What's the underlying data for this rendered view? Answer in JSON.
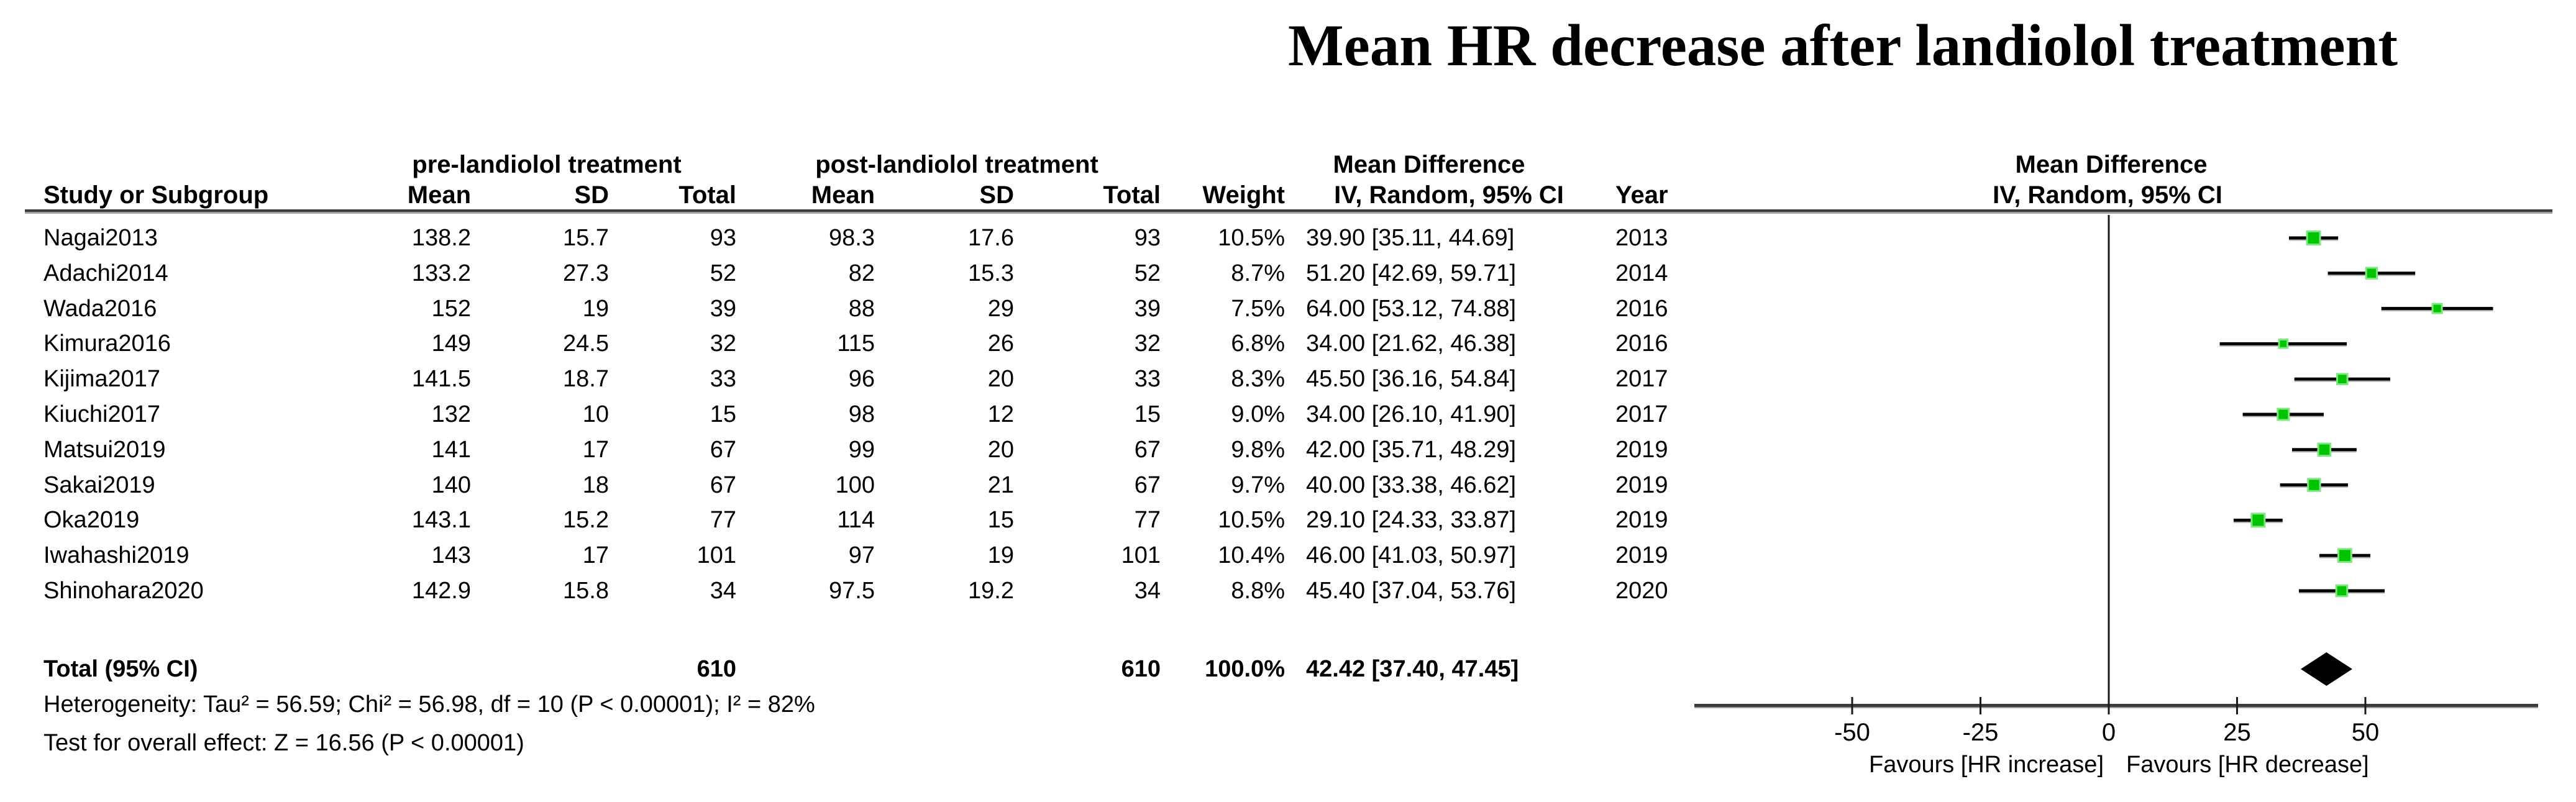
{
  "title": "Mean HR decrease after landiolol treatment",
  "table": {
    "group_headers": {
      "pre": "pre-landiolol treatment",
      "post": "post-landiolol treatment",
      "md_table": "Mean Difference",
      "md_plot": "Mean Difference"
    },
    "col_headers": {
      "study": "Study or Subgroup",
      "pre_mean": "Mean",
      "pre_sd": "SD",
      "pre_total": "Total",
      "post_mean": "Mean",
      "post_sd": "SD",
      "post_total": "Total",
      "weight": "Weight",
      "iv_table": "IV, Random, 95% CI",
      "year": "Year",
      "iv_plot": "IV, Random, 95% CI"
    }
  },
  "chart_data": {
    "type": "forest",
    "effect_measure": "Mean Difference, IV, Random, 95% CI",
    "rows": [
      {
        "study": "Nagai2013",
        "pre_mean": "138.2",
        "pre_sd": "15.7",
        "pre_total": "93",
        "post_mean": "98.3",
        "post_sd": "17.6",
        "post_total": "93",
        "weight": "10.5%",
        "weight_pct": 10.5,
        "ci_text": "39.90 [35.11, 44.69]",
        "year": "2013",
        "md": 39.9,
        "lo": 35.11,
        "hi": 44.69
      },
      {
        "study": "Adachi2014",
        "pre_mean": "133.2",
        "pre_sd": "27.3",
        "pre_total": "52",
        "post_mean": "82",
        "post_sd": "15.3",
        "post_total": "52",
        "weight": "8.7%",
        "weight_pct": 8.7,
        "ci_text": "51.20 [42.69, 59.71]",
        "year": "2014",
        "md": 51.2,
        "lo": 42.69,
        "hi": 59.71
      },
      {
        "study": "Wada2016",
        "pre_mean": "152",
        "pre_sd": "19",
        "pre_total": "39",
        "post_mean": "88",
        "post_sd": "29",
        "post_total": "39",
        "weight": "7.5%",
        "weight_pct": 7.5,
        "ci_text": "64.00 [53.12, 74.88]",
        "year": "2016",
        "md": 64.0,
        "lo": 53.12,
        "hi": 74.88
      },
      {
        "study": "Kimura2016",
        "pre_mean": "149",
        "pre_sd": "24.5",
        "pre_total": "32",
        "post_mean": "115",
        "post_sd": "26",
        "post_total": "32",
        "weight": "6.8%",
        "weight_pct": 6.8,
        "ci_text": "34.00 [21.62, 46.38]",
        "year": "2016",
        "md": 34.0,
        "lo": 21.62,
        "hi": 46.38
      },
      {
        "study": "Kijima2017",
        "pre_mean": "141.5",
        "pre_sd": "18.7",
        "pre_total": "33",
        "post_mean": "96",
        "post_sd": "20",
        "post_total": "33",
        "weight": "8.3%",
        "weight_pct": 8.3,
        "ci_text": "45.50 [36.16, 54.84]",
        "year": "2017",
        "md": 45.5,
        "lo": 36.16,
        "hi": 54.84
      },
      {
        "study": "Kiuchi2017",
        "pre_mean": "132",
        "pre_sd": "10",
        "pre_total": "15",
        "post_mean": "98",
        "post_sd": "12",
        "post_total": "15",
        "weight": "9.0%",
        "weight_pct": 9.0,
        "ci_text": "34.00 [26.10, 41.90]",
        "year": "2017",
        "md": 34.0,
        "lo": 26.1,
        "hi": 41.9
      },
      {
        "study": "Matsui2019",
        "pre_mean": "141",
        "pre_sd": "17",
        "pre_total": "67",
        "post_mean": "99",
        "post_sd": "20",
        "post_total": "67",
        "weight": "9.8%",
        "weight_pct": 9.8,
        "ci_text": "42.00 [35.71, 48.29]",
        "year": "2019",
        "md": 42.0,
        "lo": 35.71,
        "hi": 48.29
      },
      {
        "study": "Sakai2019",
        "pre_mean": "140",
        "pre_sd": "18",
        "pre_total": "67",
        "post_mean": "100",
        "post_sd": "21",
        "post_total": "67",
        "weight": "9.7%",
        "weight_pct": 9.7,
        "ci_text": "40.00 [33.38, 46.62]",
        "year": "2019",
        "md": 40.0,
        "lo": 33.38,
        "hi": 46.62
      },
      {
        "study": "Oka2019",
        "pre_mean": "143.1",
        "pre_sd": "15.2",
        "pre_total": "77",
        "post_mean": "114",
        "post_sd": "15",
        "post_total": "77",
        "weight": "10.5%",
        "weight_pct": 10.5,
        "ci_text": "29.10 [24.33, 33.87]",
        "year": "2019",
        "md": 29.1,
        "lo": 24.33,
        "hi": 33.87
      },
      {
        "study": "Iwahashi2019",
        "pre_mean": "143",
        "pre_sd": "17",
        "pre_total": "101",
        "post_mean": "97",
        "post_sd": "19",
        "post_total": "101",
        "weight": "10.4%",
        "weight_pct": 10.4,
        "ci_text": "46.00 [41.03, 50.97]",
        "year": "2019",
        "md": 46.0,
        "lo": 41.03,
        "hi": 50.97
      },
      {
        "study": "Shinohara2020",
        "pre_mean": "142.9",
        "pre_sd": "15.8",
        "pre_total": "34",
        "post_mean": "97.5",
        "post_sd": "19.2",
        "post_total": "34",
        "weight": "8.8%",
        "weight_pct": 8.8,
        "ci_text": "45.40 [37.04, 53.76]",
        "year": "2020",
        "md": 45.4,
        "lo": 37.04,
        "hi": 53.76
      }
    ],
    "total": {
      "label": "Total (95% CI)",
      "pre_total": "610",
      "post_total": "610",
      "weight": "100.0%",
      "ci_text": "42.42 [37.40, 47.45]",
      "md": 42.42,
      "lo": 37.4,
      "hi": 47.45
    },
    "heterogeneity": "Heterogeneity: Tau² = 56.59; Chi² = 56.98, df = 10 (P < 0.00001); I² = 82%",
    "overall_effect": "Test for overall effect: Z = 16.56 (P < 0.00001)",
    "axis": {
      "ticks": [
        -50,
        -25,
        0,
        25,
        50
      ],
      "xlim": [
        -81,
        84
      ],
      "favours_left": "Favours [HR increase]",
      "favours_right": "Favours [HR decrease]"
    },
    "colors": {
      "marker_green": "#00c400",
      "marker_glow": "#7de87d",
      "line_black": "#000000",
      "axis_gray": "#3c3c3c",
      "axis_shadow": "#9e9e9e"
    }
  }
}
